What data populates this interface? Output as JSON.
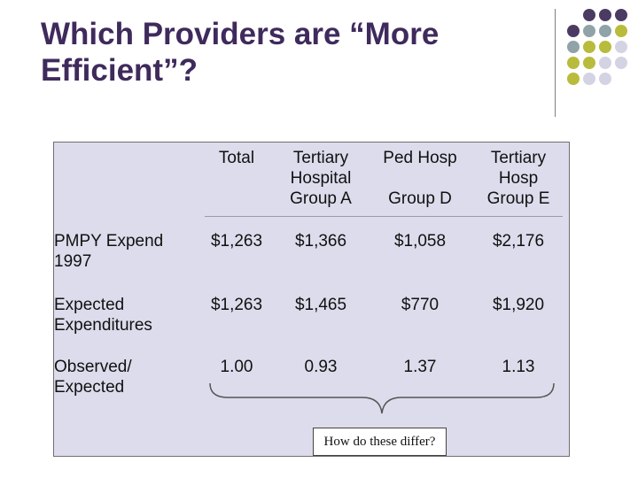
{
  "slide": {
    "title": "Which Providers are “More Efficient”?"
  },
  "decoration": {
    "dot_colors": [
      "#4b3b63",
      "#8fa3a8",
      "#b9bb3c",
      "#d3d3e4"
    ]
  },
  "table": {
    "columns": [
      "Total",
      "Tertiary\nHospital\nGroup A",
      "Ped Hosp\n\nGroup D",
      "Tertiary\nHosp\nGroup E"
    ],
    "rows": [
      {
        "label": "PMPY Expend\n1997",
        "values": [
          "$1,263",
          "$1,366",
          "$1,058",
          "$2,176"
        ]
      },
      {
        "label": "Expected\nExpenditures",
        "values": [
          "$1,263",
          "$1,465",
          "$770",
          "$1,920"
        ]
      },
      {
        "label": "Observed/\nExpected",
        "values": [
          "1.00",
          "0.93",
          "1.37",
          "1.13"
        ]
      }
    ],
    "note": "How do these differ?"
  }
}
